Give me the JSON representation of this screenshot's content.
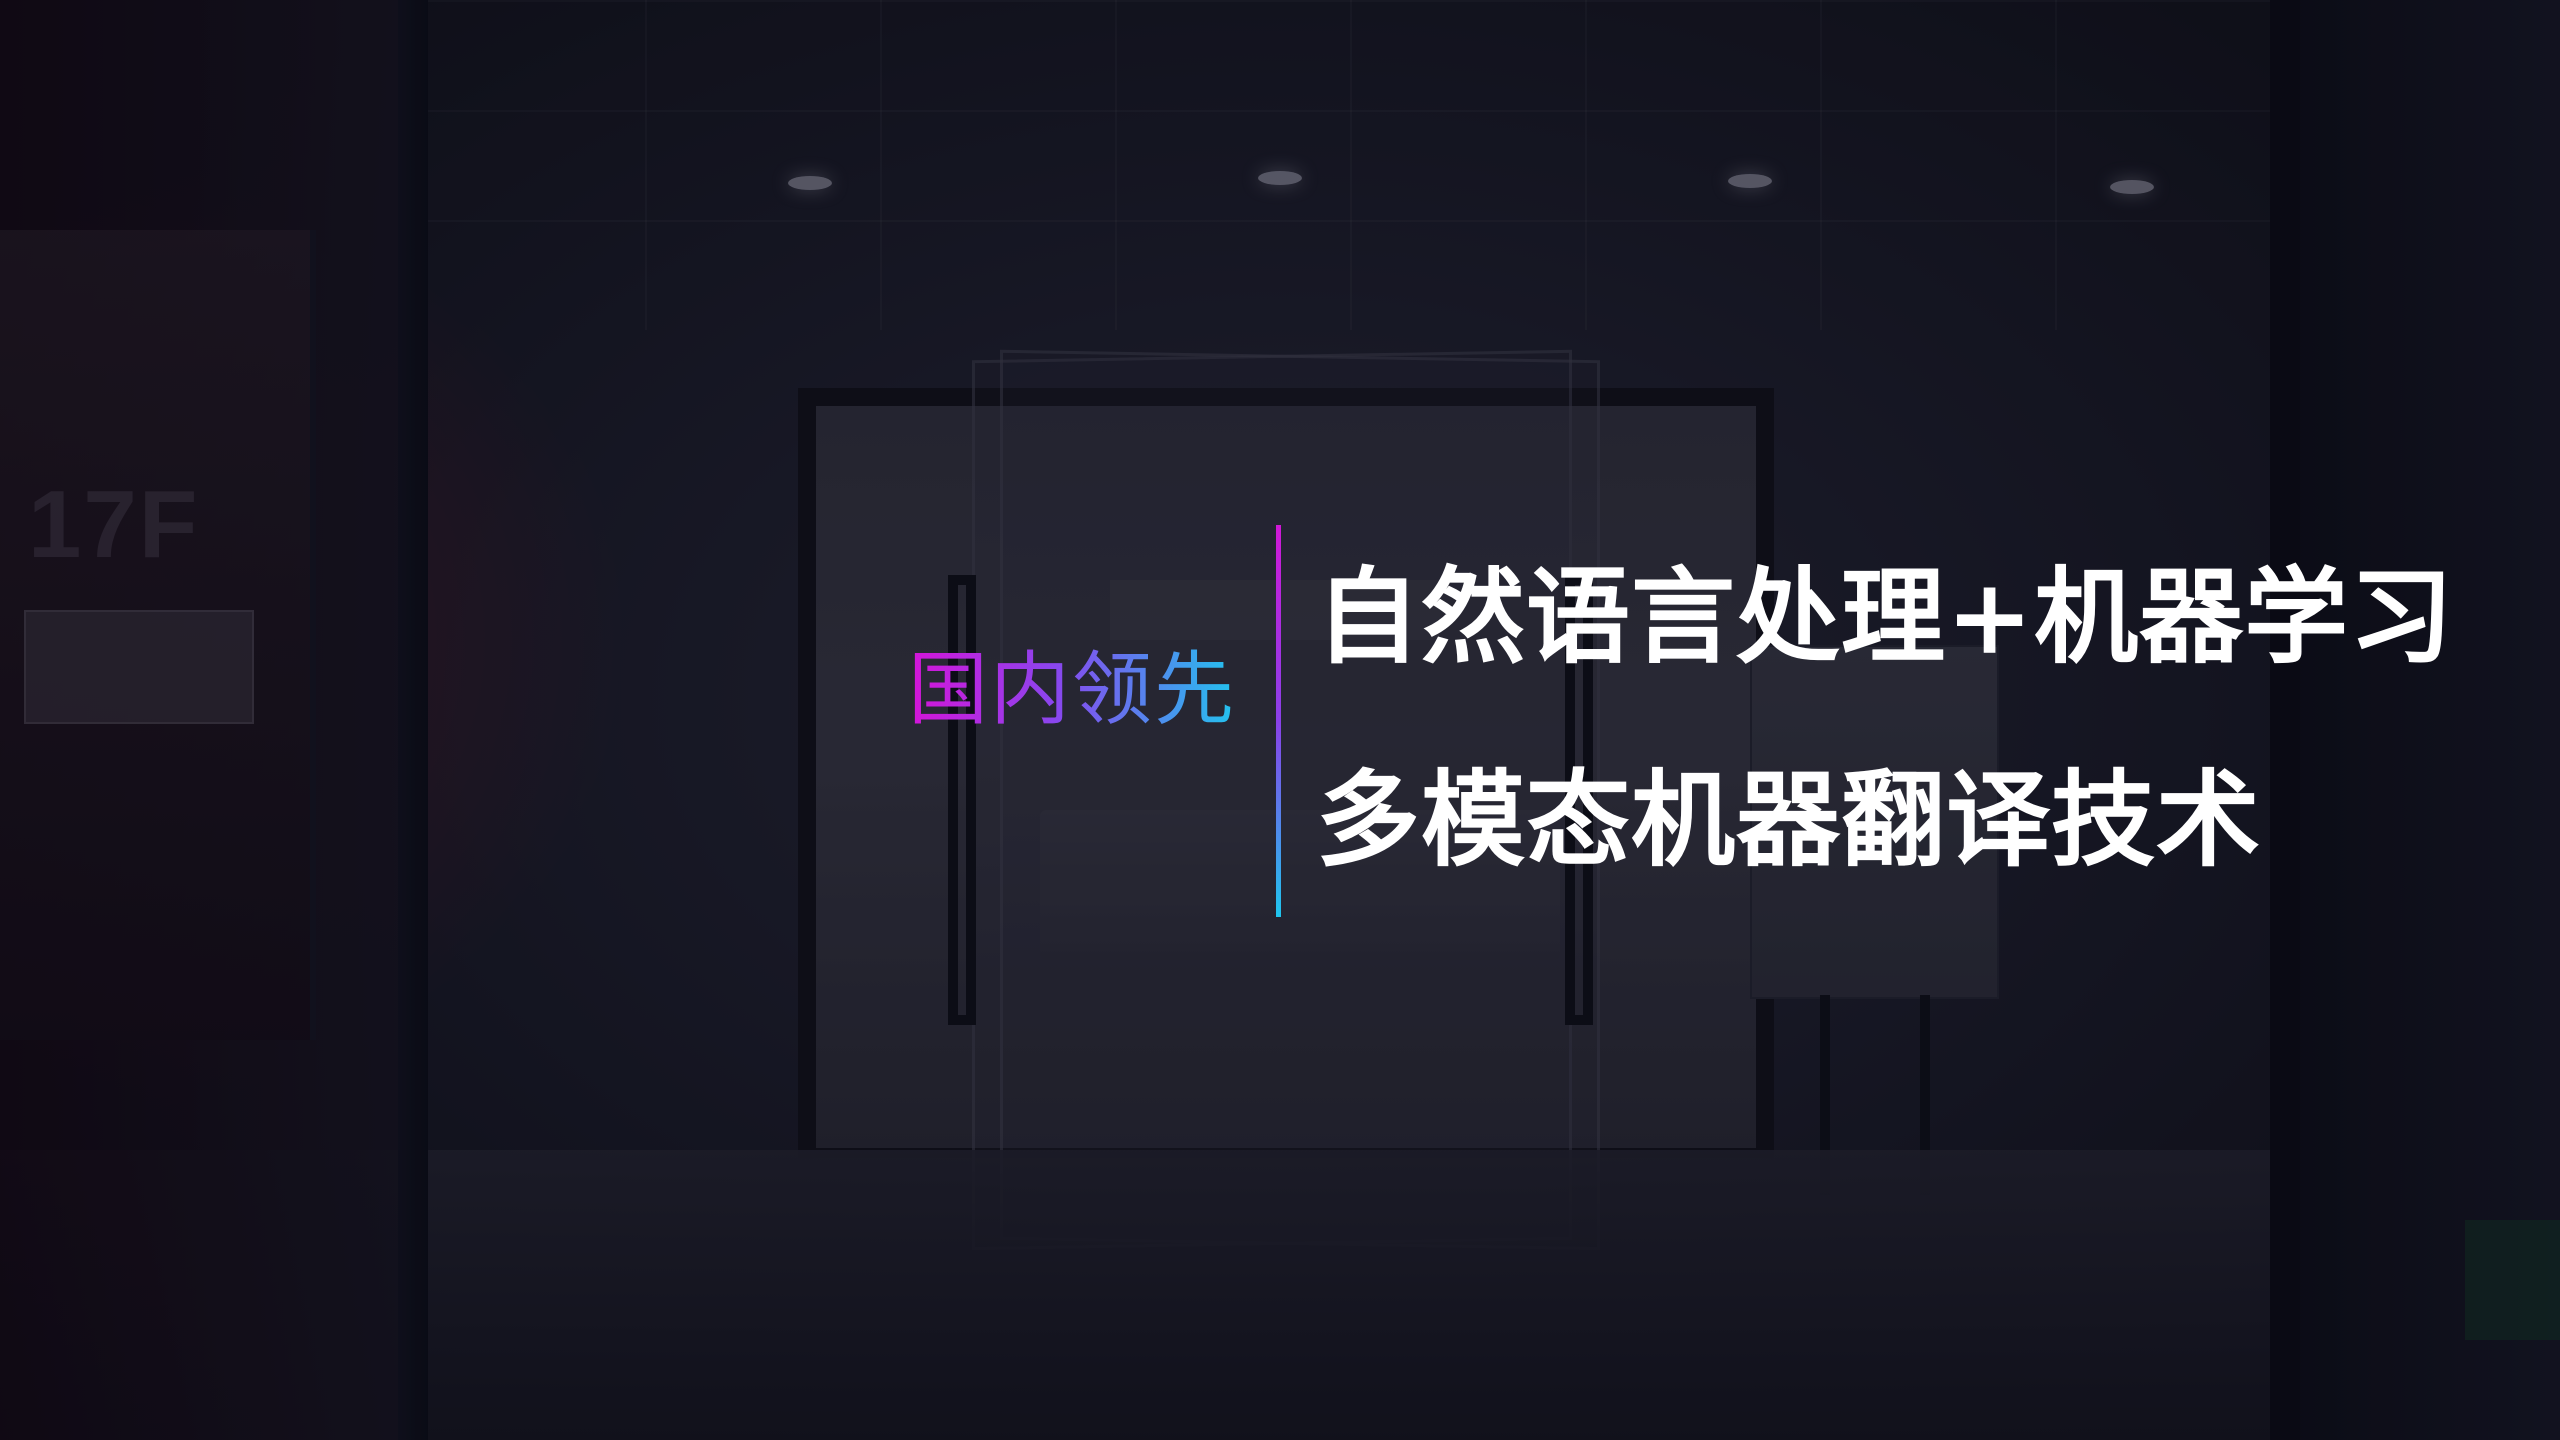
{
  "scene": {
    "floor_label": "17F"
  },
  "tag": {
    "text": "国内领先"
  },
  "headline": {
    "line1": "自然语言处理+机器学习",
    "line2": "多模态机器翻译技术"
  },
  "colors": {
    "gradient_start": "#d514d8",
    "gradient_mid": "#8a46ee",
    "gradient_end": "#22c3ee",
    "headline_text": "#ffffff"
  }
}
